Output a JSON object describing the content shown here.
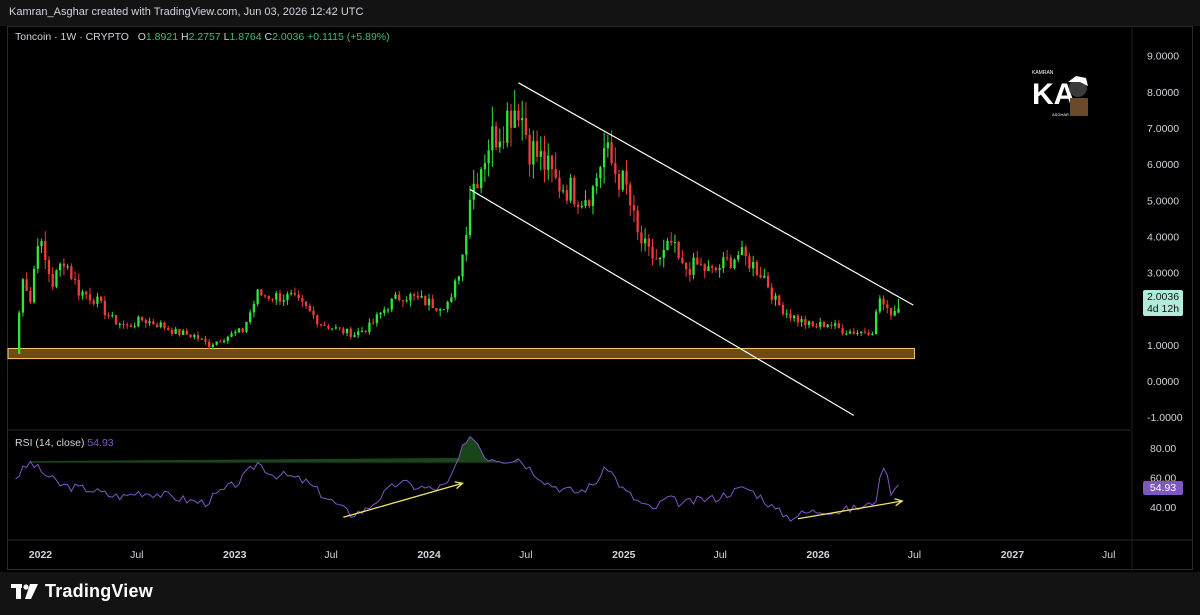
{
  "header": {
    "attribution": "Kamran_Asghar created with TradingView.com, Jun 03, 2026 12:42 UTC"
  },
  "legend": {
    "symbol": "Toncoin · 1W · CRYPTO",
    "o_label": "O",
    "o": "1.8921",
    "h_label": "H",
    "h": "2.2757",
    "l_label": "L",
    "l": "1.8764",
    "c_label": "C",
    "c": "2.0036",
    "change": "+0.1115 (+5.89%)"
  },
  "rsi_legend": {
    "label": "RSI (14, close)",
    "value": "54.93"
  },
  "price_tag": {
    "price": "2.0036",
    "countdown": "4d 12h"
  },
  "rsi_tag": {
    "value": "54.93"
  },
  "footer": {
    "brand": "TradingView"
  },
  "watermark": {
    "text": "KA",
    "small_top": "KAMRAN",
    "small_bottom": "ASGHAR"
  },
  "colors": {
    "up": "#26a69a",
    "up_bright": "#2ee53c",
    "down": "#ef3b3b",
    "rsi": "#7e57c2",
    "support": "#f7c873",
    "arrow": "#f1e46b",
    "channel": "#ffffff"
  },
  "chart_data": [
    {
      "type": "candlestick",
      "series_name": "Toncoin",
      "y_ticks": [
        "9.0000",
        "8.0000",
        "7.0000",
        "6.0000",
        "5.0000",
        "4.0000",
        "3.0000",
        "2.0000",
        "1.0000",
        "0.0000",
        "-1.0000"
      ],
      "ylim": [
        -1.3,
        9.6
      ],
      "x_ticks": [
        "2022",
        "Jul",
        "2023",
        "Jul",
        "2024",
        "Jul",
        "2025",
        "Jul",
        "2026",
        "Jul",
        "2027",
        "Jul"
      ],
      "x_tick_dates": [
        "2022-01-01",
        "2022-07-01",
        "2023-01-01",
        "2023-07-01",
        "2024-01-01",
        "2024-07-01",
        "2025-01-01",
        "2025-07-01",
        "2026-01-01",
        "2026-07-01",
        "2027-01-01",
        "2027-07-01"
      ],
      "anchors": [
        [
          "2021-11-15",
          0.75
        ],
        [
          "2021-11-29",
          3.0
        ],
        [
          "2021-12-13",
          2.2
        ],
        [
          "2021-12-27",
          4.0
        ],
        [
          "2022-01-10",
          3.3
        ],
        [
          "2022-01-24",
          2.7
        ],
        [
          "2022-02-14",
          3.4
        ],
        [
          "2022-03-14",
          2.5
        ],
        [
          "2022-04-11",
          2.3
        ],
        [
          "2022-05-16",
          1.7
        ],
        [
          "2022-06-13",
          1.5
        ],
        [
          "2022-07-11",
          1.7
        ],
        [
          "2022-08-15",
          1.55
        ],
        [
          "2022-09-12",
          1.35
        ],
        [
          "2022-10-17",
          1.25
        ],
        [
          "2022-11-14",
          1.0
        ],
        [
          "2022-12-12",
          1.2
        ],
        [
          "2023-01-16",
          1.4
        ],
        [
          "2023-02-13",
          2.4
        ],
        [
          "2023-03-13",
          2.35
        ],
        [
          "2023-04-17",
          2.3
        ],
        [
          "2023-05-15",
          2.0
        ],
        [
          "2023-06-12",
          1.6
        ],
        [
          "2023-07-17",
          1.4
        ],
        [
          "2023-08-14",
          1.3
        ],
        [
          "2023-09-11",
          1.5
        ],
        [
          "2023-10-16",
          2.1
        ],
        [
          "2023-11-13",
          2.4
        ],
        [
          "2023-12-11",
          2.25
        ],
        [
          "2024-01-15",
          2.1
        ],
        [
          "2024-02-12",
          2.2
        ],
        [
          "2024-03-04",
          3.5
        ],
        [
          "2024-03-18",
          5.2
        ],
        [
          "2024-04-08",
          6.0
        ],
        [
          "2024-04-22",
          6.6
        ],
        [
          "2024-05-13",
          7.0
        ],
        [
          "2024-06-03",
          7.5
        ],
        [
          "2024-06-17",
          7.7
        ],
        [
          "2024-07-08",
          6.5
        ],
        [
          "2024-08-05",
          6.0
        ],
        [
          "2024-08-26",
          5.5
        ],
        [
          "2024-09-23",
          5.3
        ],
        [
          "2024-10-14",
          5.1
        ],
        [
          "2024-11-04",
          5.3
        ],
        [
          "2024-11-25",
          6.4
        ],
        [
          "2024-12-16",
          5.8
        ],
        [
          "2025-01-06",
          5.3
        ],
        [
          "2025-01-27",
          4.0
        ],
        [
          "2025-02-17",
          3.5
        ],
        [
          "2025-03-10",
          3.3
        ],
        [
          "2025-03-31",
          3.8
        ],
        [
          "2025-04-21",
          3.1
        ],
        [
          "2025-05-19",
          3.2
        ],
        [
          "2025-06-16",
          3.0
        ],
        [
          "2025-07-14",
          3.3
        ],
        [
          "2025-08-04",
          3.5
        ],
        [
          "2025-08-25",
          3.3
        ],
        [
          "2025-09-22",
          2.9
        ],
        [
          "2025-10-13",
          2.2
        ],
        [
          "2025-11-03",
          1.9
        ],
        [
          "2025-11-24",
          1.7
        ],
        [
          "2025-12-22",
          1.5
        ],
        [
          "2026-01-19",
          1.6
        ],
        [
          "2026-02-16",
          1.4
        ],
        [
          "2026-03-16",
          1.35
        ],
        [
          "2026-04-13",
          1.4
        ],
        [
          "2026-04-27",
          2.3
        ],
        [
          "2026-05-11",
          1.9
        ],
        [
          "2026-06-01",
          2.0036
        ]
      ],
      "last_candle": {
        "date": "2026-06-01",
        "open": 1.8921,
        "high": 2.2757,
        "low": 1.8764,
        "close": 2.0036
      },
      "support_zone": {
        "from": 0.62,
        "to": 0.9,
        "start": "2021-11-01",
        "end": "2026-07-01"
      },
      "channel_upper": [
        [
          "2024-06-17",
          8.25
        ],
        [
          "2026-06-29",
          2.1
        ]
      ],
      "channel_lower": [
        [
          "2024-03-18",
          5.3
        ],
        [
          "2026-03-09",
          -0.95
        ]
      ]
    },
    {
      "type": "line",
      "series_name": "RSI (14, close)",
      "y_ticks": [
        "80.00",
        "60.00",
        "40.00"
      ],
      "ylim": [
        19,
        90
      ],
      "anchors": [
        [
          "2021-11-15",
          60
        ],
        [
          "2021-12-13",
          70
        ],
        [
          "2022-01-10",
          62
        ],
        [
          "2022-02-07",
          55
        ],
        [
          "2022-03-07",
          53
        ],
        [
          "2022-04-04",
          52
        ],
        [
          "2022-05-09",
          48
        ],
        [
          "2022-06-06",
          47
        ],
        [
          "2022-07-04",
          50
        ],
        [
          "2022-08-08",
          49
        ],
        [
          "2022-09-05",
          47
        ],
        [
          "2022-10-10",
          44
        ],
        [
          "2022-11-07",
          43
        ],
        [
          "2022-12-05",
          50
        ],
        [
          "2023-01-09",
          57
        ],
        [
          "2023-02-13",
          70
        ],
        [
          "2023-03-13",
          62
        ],
        [
          "2023-04-10",
          61
        ],
        [
          "2023-05-15",
          57
        ],
        [
          "2023-06-12",
          49
        ],
        [
          "2023-07-10",
          42
        ],
        [
          "2023-08-07",
          35
        ],
        [
          "2023-09-04",
          38
        ],
        [
          "2023-10-02",
          47
        ],
        [
          "2023-11-06",
          57
        ],
        [
          "2023-12-04",
          54
        ],
        [
          "2024-01-08",
          52
        ],
        [
          "2024-02-05",
          55
        ],
        [
          "2024-03-04",
          79
        ],
        [
          "2024-03-25",
          88
        ],
        [
          "2024-04-15",
          74
        ],
        [
          "2024-05-20",
          72
        ],
        [
          "2024-06-17",
          73
        ],
        [
          "2024-07-15",
          64
        ],
        [
          "2024-08-12",
          56
        ],
        [
          "2024-09-09",
          52
        ],
        [
          "2024-10-07",
          50
        ],
        [
          "2024-11-04",
          55
        ],
        [
          "2024-12-02",
          67
        ],
        [
          "2024-12-30",
          52
        ],
        [
          "2025-01-27",
          44
        ],
        [
          "2025-02-24",
          38
        ],
        [
          "2025-03-24",
          46
        ],
        [
          "2025-04-21",
          42
        ],
        [
          "2025-05-26",
          45
        ],
        [
          "2025-06-23",
          46
        ],
        [
          "2025-07-21",
          50
        ],
        [
          "2025-08-18",
          53
        ],
        [
          "2025-09-15",
          47
        ],
        [
          "2025-10-13",
          38
        ],
        [
          "2025-11-10",
          33
        ],
        [
          "2025-12-08",
          36
        ],
        [
          "2026-01-12",
          38
        ],
        [
          "2026-02-09",
          37
        ],
        [
          "2026-03-09",
          39
        ],
        [
          "2026-04-06",
          41
        ],
        [
          "2026-04-20",
          46
        ],
        [
          "2026-05-04",
          69
        ],
        [
          "2026-05-18",
          51
        ],
        [
          "2026-06-01",
          54.93
        ]
      ],
      "divergence_arrows": [
        {
          "from": [
            "2023-07-24",
            33
          ],
          "to": [
            "2024-03-04",
            56
          ]
        },
        {
          "from": [
            "2025-11-24",
            32
          ],
          "to": [
            "2026-06-08",
            44
          ]
        }
      ]
    }
  ]
}
